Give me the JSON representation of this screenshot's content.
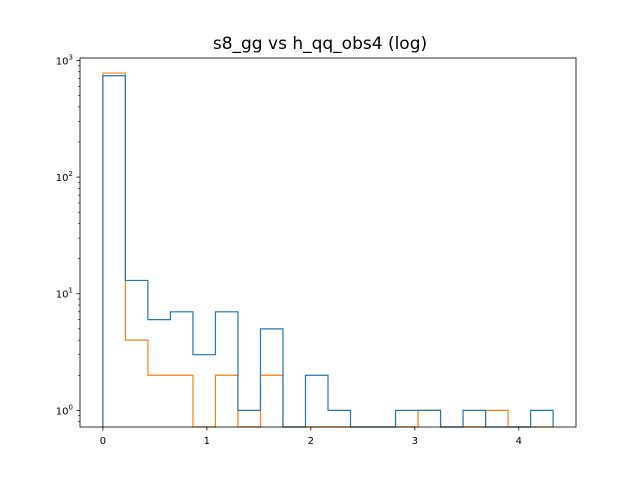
{
  "chart_data": {
    "type": "histogram",
    "title": "s8_gg vs h_qq_obs4 (log)",
    "xlabel": "",
    "ylabel": "",
    "yscale": "log",
    "xlim": [
      -0.22,
      4.55
    ],
    "ylim": [
      0.72,
      1050
    ],
    "grid": false,
    "x_ticks": [
      0,
      1,
      2,
      3,
      4
    ],
    "y_ticks": [
      {
        "value": 1,
        "label": "10",
        "exp": "0"
      },
      {
        "value": 10,
        "label": "10",
        "exp": "1"
      },
      {
        "value": 100,
        "label": "10",
        "exp": "2"
      },
      {
        "value": 1000,
        "label": "10",
        "exp": "3"
      }
    ],
    "bin_edges": [
      0,
      0.2165,
      0.433,
      0.6495,
      0.866,
      1.0825,
      1.299,
      1.5155,
      1.732,
      1.9485,
      2.165,
      2.3815,
      2.598,
      2.8145,
      3.031,
      3.2475,
      3.464,
      3.6805,
      3.897,
      4.1135,
      4.33
    ],
    "series": [
      {
        "color": "#1f77b4",
        "values": [
          740,
          13,
          6,
          7,
          3,
          7,
          1,
          5,
          0,
          2,
          1,
          0,
          0,
          1,
          1,
          0,
          1,
          0,
          0,
          1
        ]
      },
      {
        "color": "#ff7f0e",
        "values": [
          780,
          4,
          2,
          2,
          0,
          2,
          0,
          2,
          0,
          0,
          0,
          0,
          0,
          0,
          1,
          0,
          0,
          1,
          0,
          0
        ]
      }
    ]
  }
}
